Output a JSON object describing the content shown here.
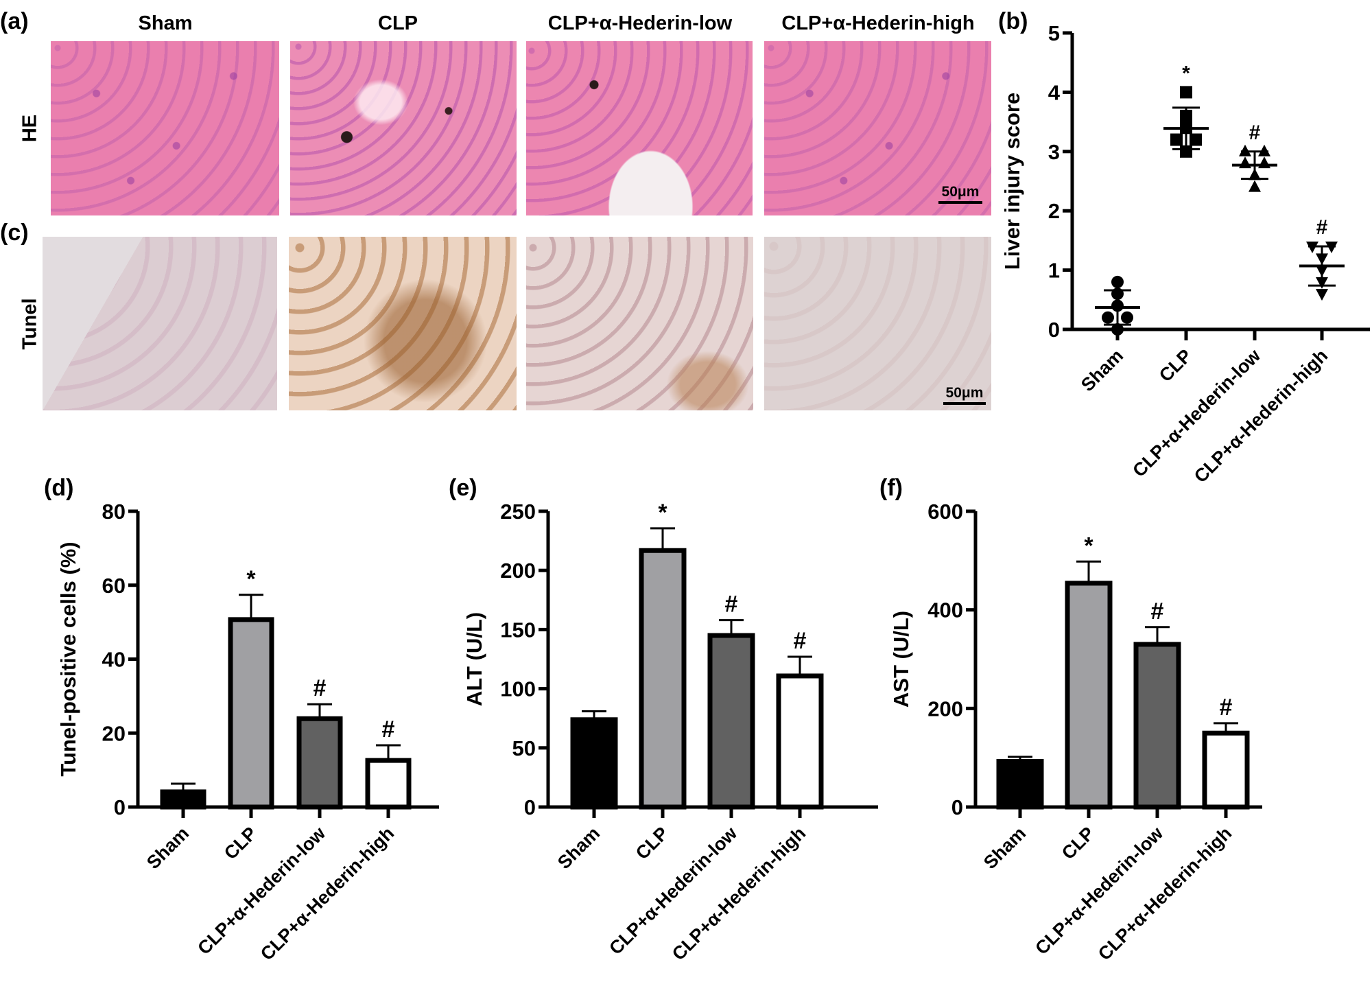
{
  "figure": {
    "panel_labels": {
      "a": "(a)",
      "b": "(b)",
      "c": "(c)",
      "d": "(d)",
      "e": "(e)",
      "f": "(f)"
    },
    "groups": [
      "Sham",
      "CLP",
      "CLP+α-Hederin-low",
      "CLP+α-Hederin-high"
    ],
    "row_labels": {
      "he": "HE",
      "tunel": "Tunel"
    },
    "scale_bar": "50μm",
    "colors": {
      "sham_bar": "#000000",
      "clp_bar": "#a0a0a3",
      "low_bar": "#616161",
      "high_bar": "#ffffff",
      "he_stain": "#ea7fae",
      "tunel_background": "#dccdd2"
    }
  },
  "chart_data": [
    {
      "panel": "(b)",
      "type": "scatter",
      "title": "",
      "xlabel": "",
      "ylabel": "Liver injury score",
      "categories": [
        "Sham",
        "CLP",
        "CLP+α-Hederin-low",
        "CLP+α-Hederin-high"
      ],
      "ylim": [
        0,
        5
      ],
      "yticks": [
        0,
        1,
        2,
        3,
        4,
        5
      ],
      "markers": [
        "circle",
        "square",
        "triangle-up",
        "triangle-down"
      ],
      "points": [
        [
          0.8,
          0.6,
          0.4,
          0.2,
          0.2,
          0.0
        ],
        [
          4.0,
          3.6,
          3.4,
          3.2,
          3.2,
          3.0
        ],
        [
          3.0,
          3.0,
          2.8,
          2.8,
          2.6,
          2.4
        ],
        [
          1.4,
          1.4,
          1.2,
          1.0,
          0.8,
          0.6
        ]
      ],
      "mean": [
        0.37,
        3.39,
        2.77,
        1.07
      ],
      "sd": [
        0.29,
        0.35,
        0.23,
        0.33
      ],
      "annotations": [
        "",
        "*",
        "#",
        "#"
      ],
      "grid": false
    },
    {
      "panel": "(d)",
      "type": "bar",
      "title": "",
      "xlabel": "",
      "ylabel": "Tunel-positive cells (%)",
      "categories": [
        "Sham",
        "CLP",
        "CLP+α-Hederin-low",
        "CLP+α-Hederin-high"
      ],
      "values": [
        4.1,
        50.7,
        23.9,
        12.6
      ],
      "error": [
        2.2,
        6.7,
        3.9,
        4.1
      ],
      "ylim": [
        0,
        80
      ],
      "yticks": [
        0,
        20,
        40,
        60,
        80
      ],
      "annotations": [
        "",
        "*",
        "#",
        "#"
      ],
      "grid": false
    },
    {
      "panel": "(e)",
      "type": "bar",
      "title": "",
      "xlabel": "",
      "ylabel": "ALT (U/L)",
      "categories": [
        "Sham",
        "CLP",
        "CLP+α-Hederin-low",
        "CLP+α-Hederin-high"
      ],
      "values": [
        73.8,
        216.8,
        145,
        110.8
      ],
      "error": [
        7.1,
        18.8,
        13,
        16.2
      ],
      "ylim": [
        0,
        250
      ],
      "yticks": [
        0,
        50,
        100,
        150,
        200,
        250
      ],
      "annotations": [
        "",
        "*",
        "#",
        "#"
      ],
      "grid": false
    },
    {
      "panel": "(f)",
      "type": "bar",
      "title": "",
      "xlabel": "",
      "ylabel": "AST (U/L)",
      "categories": [
        "Sham",
        "CLP",
        "CLP+α-Hederin-low",
        "CLP+α-Hederin-high"
      ],
      "values": [
        92.5,
        454,
        330,
        150
      ],
      "error": [
        9.3,
        44,
        35,
        20
      ],
      "ylim": [
        0,
        600
      ],
      "yticks": [
        0,
        200,
        400,
        600
      ],
      "annotations": [
        "",
        "*",
        "#",
        "#"
      ],
      "grid": false
    }
  ]
}
